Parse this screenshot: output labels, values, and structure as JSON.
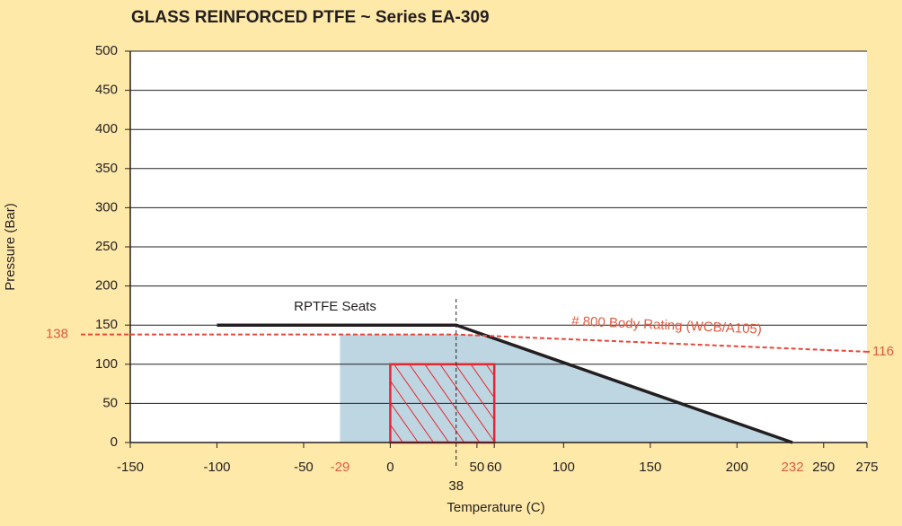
{
  "chart_data": {
    "type": "line",
    "title": "GLASS REINFORCED PTFE ~ Series EA-309",
    "x_label": "Temperature (C)",
    "y_label": "Pressure (Bar)",
    "xlim": [
      -150,
      275
    ],
    "ylim": [
      0,
      500
    ],
    "xticks": [
      -150,
      -100,
      -50,
      0,
      50,
      60,
      100,
      150,
      200,
      250,
      275
    ],
    "yticks": [
      0,
      50,
      100,
      150,
      200,
      250,
      300,
      350,
      400,
      450,
      500
    ],
    "grid": true,
    "series": [
      {
        "name": "RPTFE Seats",
        "color": "#231f20",
        "x": [
          -100,
          38,
          232
        ],
        "values": [
          150,
          150,
          0
        ]
      },
      {
        "name": "# 800 Body Rating (WCB/A105)",
        "color": "#e8473b",
        "x": [
          -150,
          38,
          275
        ],
        "values": [
          138,
          138,
          116
        ]
      }
    ],
    "shaded_region": {
      "color": "#bdd6e2",
      "x": [
        -29,
        -29,
        53,
        232
      ],
      "values": [
        0,
        138,
        138,
        0
      ]
    },
    "hatch_region": {
      "color": "#e8262d",
      "x": [
        0,
        60
      ],
      "values": [
        0,
        100
      ]
    },
    "vline_x": 38,
    "red_x_labels": [
      -29,
      232
    ],
    "side_labels": [
      138,
      116
    ],
    "label_color": "#e05a40"
  }
}
